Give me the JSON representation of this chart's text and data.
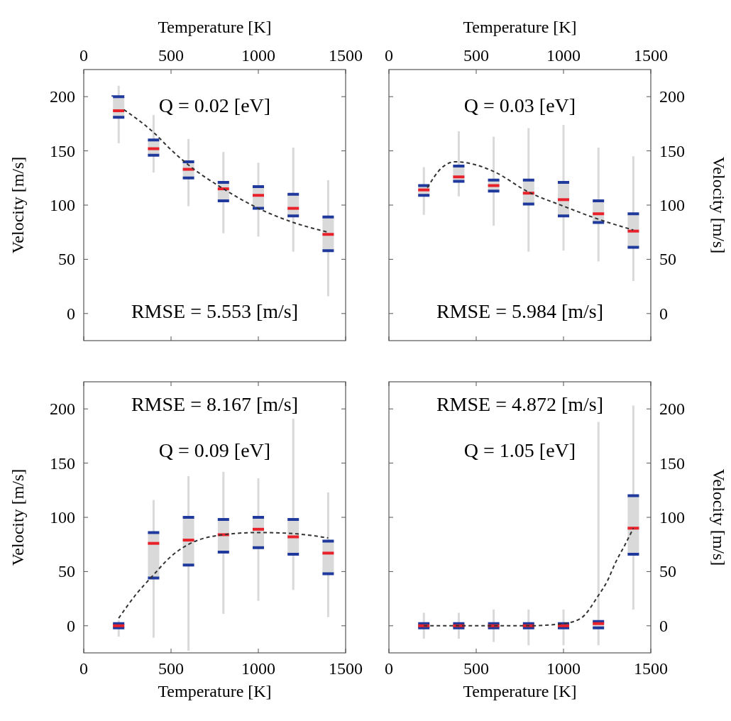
{
  "chart_data": [
    {
      "type": "box",
      "xlabel": "Temperature [K]",
      "ylabel": "Velocity [m/s]",
      "xlim": [
        0,
        1500
      ],
      "xticks": [
        0,
        500,
        1000,
        1500
      ],
      "ylim": [
        -25,
        225
      ],
      "yticks": [
        0,
        50,
        100,
        150,
        200
      ],
      "annotations": [
        "Q = 0.02 [eV]",
        "RMSE = 5.553 [m/s]"
      ],
      "series": [
        {
          "type": "box",
          "color": "#d9d9d9",
          "x": [
            200,
            400,
            600,
            800,
            1000,
            1200,
            1400
          ],
          "boxes": [
            {
              "low": 157,
              "q1": 181,
              "median": 187,
              "q3": 200,
              "high": 210
            },
            {
              "low": 130,
              "q1": 146,
              "median": 152,
              "q3": 160,
              "high": 183
            },
            {
              "low": 99,
              "q1": 125,
              "median": 133,
              "q3": 140,
              "high": 161
            },
            {
              "low": 74,
              "q1": 104,
              "median": 115,
              "q3": 121,
              "high": 149
            },
            {
              "low": 71,
              "q1": 97,
              "median": 109,
              "q3": 117,
              "high": 139
            },
            {
              "low": 57,
              "q1": 90,
              "median": 97,
              "q3": 110,
              "high": 153
            },
            {
              "low": 16,
              "q1": 58,
              "median": 73,
              "q3": 89,
              "high": 123
            }
          ]
        },
        {
          "type": "line",
          "color": "#333333",
          "line_style": "dashed",
          "x": [
            230,
            300,
            400,
            500,
            600,
            800,
            1000,
            1200,
            1400
          ],
          "values": [
            188,
            180,
            167,
            151,
            137,
            115,
            97,
            84,
            75
          ]
        }
      ]
    },
    {
      "type": "box",
      "xlabel": "Temperature [K]",
      "ylabel": "Velocity [m/s]",
      "xlim": [
        0,
        1500
      ],
      "xticks": [
        0,
        500,
        1000,
        1500
      ],
      "ylim": [
        -25,
        225
      ],
      "yticks": [
        0,
        50,
        100,
        150,
        200
      ],
      "annotations": [
        "Q = 0.03 [eV]",
        "RMSE = 5.984 [m/s]"
      ],
      "series": [
        {
          "type": "box",
          "color": "#d9d9d9",
          "x": [
            200,
            400,
            600,
            800,
            1000,
            1200,
            1400
          ],
          "boxes": [
            {
              "low": 91,
              "q1": 109,
              "median": 114,
              "q3": 118,
              "high": 135
            },
            {
              "low": 108,
              "q1": 122,
              "median": 126,
              "q3": 136,
              "high": 168
            },
            {
              "low": 81,
              "q1": 113,
              "median": 118,
              "q3": 123,
              "high": 163
            },
            {
              "low": 57,
              "q1": 101,
              "median": 111,
              "q3": 123,
              "high": 171
            },
            {
              "low": 58,
              "q1": 90,
              "median": 105,
              "q3": 121,
              "high": 174
            },
            {
              "low": 48,
              "q1": 84,
              "median": 92,
              "q3": 104,
              "high": 153
            },
            {
              "low": 30,
              "q1": 61,
              "median": 76,
              "q3": 92,
              "high": 145
            }
          ]
        },
        {
          "type": "line",
          "color": "#333333",
          "line_style": "dashed",
          "x": [
            220,
            300,
            380,
            500,
            600,
            800,
            1000,
            1200,
            1400
          ],
          "values": [
            116,
            134,
            140,
            137,
            131,
            112,
            99,
            87,
            77
          ]
        }
      ]
    },
    {
      "type": "box",
      "xlabel": "Temperature [K]",
      "ylabel": "Velocity [m/s]",
      "xlim": [
        0,
        1500
      ],
      "xticks": [
        0,
        500,
        1000,
        1500
      ],
      "ylim": [
        -25,
        225
      ],
      "yticks": [
        0,
        50,
        100,
        150,
        200
      ],
      "annotations": [
        "RMSE = 8.167 [m/s]",
        "Q = 0.09 [eV]"
      ],
      "series": [
        {
          "type": "box",
          "color": "#d9d9d9",
          "x": [
            200,
            400,
            600,
            800,
            1000,
            1200,
            1400
          ],
          "boxes": [
            {
              "low": -10,
              "q1": -2,
              "median": 0,
              "q3": 2,
              "high": 5
            },
            {
              "low": -11,
              "q1": 44,
              "median": 76,
              "q3": 86,
              "high": 116
            },
            {
              "low": -23,
              "q1": 56,
              "median": 79,
              "q3": 100,
              "high": 138
            },
            {
              "low": 11,
              "q1": 68,
              "median": 84,
              "q3": 98,
              "high": 142
            },
            {
              "low": 23,
              "q1": 72,
              "median": 89,
              "q3": 100,
              "high": 136
            },
            {
              "low": 33,
              "q1": 66,
              "median": 82,
              "q3": 98,
              "high": 191
            },
            {
              "low": 8,
              "q1": 48,
              "median": 67,
              "q3": 78,
              "high": 123
            }
          ]
        },
        {
          "type": "line",
          "color": "#333333",
          "line_style": "dashed",
          "x": [
            200,
            300,
            400,
            500,
            600,
            800,
            1000,
            1200,
            1400
          ],
          "values": [
            7,
            29,
            47,
            64,
            75,
            84,
            86,
            85,
            81
          ]
        }
      ]
    },
    {
      "type": "box",
      "xlabel": "Temperature [K]",
      "ylabel": "Velocity [m/s]",
      "xlim": [
        0,
        1500
      ],
      "xticks": [
        0,
        500,
        1000,
        1500
      ],
      "ylim": [
        -25,
        225
      ],
      "yticks": [
        0,
        50,
        100,
        150,
        200
      ],
      "annotations": [
        "RMSE = 4.872 [m/s]",
        "Q = 1.05 [eV]"
      ],
      "series": [
        {
          "type": "box",
          "color": "#d9d9d9",
          "x": [
            200,
            400,
            600,
            800,
            1000,
            1200,
            1400
          ],
          "boxes": [
            {
              "low": -12,
              "q1": -2,
              "median": 0,
              "q3": 2,
              "high": 12
            },
            {
              "low": -12,
              "q1": -2,
              "median": 0,
              "q3": 2,
              "high": 12
            },
            {
              "low": -15,
              "q1": -2,
              "median": 0,
              "q3": 2,
              "high": 15
            },
            {
              "low": -18,
              "q1": -2,
              "median": 0,
              "q3": 2,
              "high": 15
            },
            {
              "low": -18,
              "q1": -2,
              "median": 0,
              "q3": 2,
              "high": 15
            },
            {
              "low": -18,
              "q1": -2,
              "median": 2,
              "q3": 4,
              "high": 188
            },
            {
              "low": 15,
              "q1": 66,
              "median": 90,
              "q3": 120,
              "high": 203
            }
          ]
        },
        {
          "type": "line",
          "color": "#333333",
          "line_style": "dashed",
          "x": [
            200,
            400,
            600,
            800,
            1000,
            1100,
            1200,
            1250,
            1300,
            1350,
            1400
          ],
          "values": [
            0,
            0,
            0,
            0,
            2,
            7,
            28,
            41,
            59,
            74,
            90
          ]
        }
      ]
    }
  ]
}
